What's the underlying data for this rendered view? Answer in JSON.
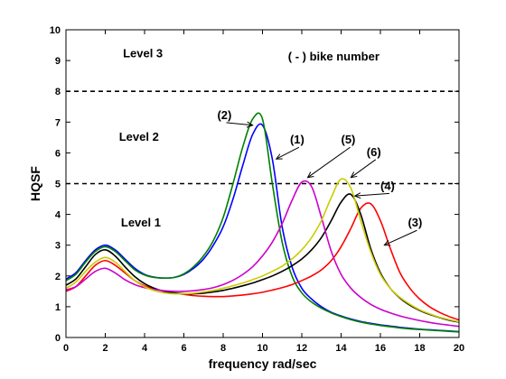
{
  "chart_data": {
    "type": "line",
    "xlabel": "frequency rad/sec",
    "ylabel": "HQSF",
    "xlim": [
      0,
      20
    ],
    "ylim": [
      0,
      10
    ],
    "xticks": [
      0,
      2,
      4,
      6,
      8,
      10,
      12,
      14,
      16,
      18,
      20
    ],
    "yticks": [
      0,
      1,
      2,
      3,
      4,
      5,
      6,
      7,
      8,
      9,
      10
    ],
    "grid": false,
    "reference_lines": [
      {
        "y": 8,
        "style": "dashed",
        "color": "#000000"
      },
      {
        "y": 5,
        "style": "dashed",
        "color": "#000000"
      }
    ],
    "annotations": [
      {
        "text": "Level 3",
        "x": 2.9,
        "y": 9.1
      },
      {
        "text": "Level 2",
        "x": 2.7,
        "y": 6.4
      },
      {
        "text": "Level 1",
        "x": 2.8,
        "y": 3.6
      },
      {
        "text": "( - ) bike number",
        "x": 11.3,
        "y": 9.0
      }
    ],
    "series_labels": [
      {
        "text": "(2)",
        "x": 7.7,
        "y": 7.1,
        "arrow_to": [
          9.5,
          6.9
        ]
      },
      {
        "text": "(1)",
        "x": 11.4,
        "y": 6.3,
        "arrow_to": [
          10.7,
          5.8
        ]
      },
      {
        "text": "(5)",
        "x": 14.0,
        "y": 6.3,
        "arrow_to": [
          12.3,
          5.2
        ]
      },
      {
        "text": "(6)",
        "x": 15.3,
        "y": 5.9,
        "arrow_to": [
          14.5,
          5.2
        ]
      },
      {
        "text": "(4)",
        "x": 16.0,
        "y": 4.8,
        "arrow_to": [
          14.7,
          4.6
        ]
      },
      {
        "text": "(3)",
        "x": 17.4,
        "y": 3.6,
        "arrow_to": [
          16.2,
          3.0
        ]
      }
    ],
    "x": [
      0,
      0.5,
      1,
      1.5,
      2,
      2.5,
      3,
      3.5,
      4,
      4.5,
      5,
      5.5,
      6,
      6.5,
      7,
      7.5,
      8,
      8.5,
      9,
      9.5,
      10,
      10.5,
      11,
      11.5,
      12,
      12.5,
      13,
      13.5,
      14,
      14.5,
      15,
      15.5,
      16,
      16.5,
      17,
      17.5,
      18,
      18.5,
      19,
      19.5,
      20
    ],
    "series": [
      {
        "color": "#0000ff",
        "values": [
          1.9,
          2.1,
          2.5,
          2.85,
          3.0,
          2.85,
          2.55,
          2.25,
          2.05,
          1.96,
          1.93,
          1.95,
          2.05,
          2.25,
          2.55,
          3.0,
          3.6,
          4.5,
          5.6,
          6.6,
          6.9,
          5.8,
          3.6,
          2.3,
          1.6,
          1.25,
          1.0,
          0.82,
          0.7,
          0.6,
          0.52,
          0.46,
          0.41,
          0.37,
          0.33,
          0.3,
          0.27,
          0.25,
          0.23,
          0.21,
          0.19
        ]
      },
      {
        "color": "#008000",
        "values": [
          1.85,
          2.05,
          2.45,
          2.8,
          2.95,
          2.8,
          2.5,
          2.2,
          2.03,
          1.95,
          1.93,
          1.95,
          2.07,
          2.3,
          2.65,
          3.15,
          3.9,
          5.0,
          6.2,
          7.1,
          7.1,
          5.0,
          3.1,
          2.0,
          1.45,
          1.15,
          0.95,
          0.8,
          0.68,
          0.58,
          0.5,
          0.44,
          0.39,
          0.35,
          0.31,
          0.28,
          0.26,
          0.24,
          0.22,
          0.2,
          0.18
        ]
      },
      {
        "color": "#ff0000",
        "values": [
          1.5,
          1.65,
          2.0,
          2.35,
          2.5,
          2.35,
          2.1,
          1.85,
          1.68,
          1.58,
          1.5,
          1.44,
          1.4,
          1.36,
          1.34,
          1.33,
          1.33,
          1.35,
          1.38,
          1.42,
          1.47,
          1.54,
          1.62,
          1.72,
          1.85,
          2.0,
          2.2,
          2.5,
          2.95,
          3.55,
          4.2,
          4.35,
          3.8,
          2.9,
          2.1,
          1.6,
          1.25,
          1.0,
          0.82,
          0.68,
          0.57
        ]
      },
      {
        "color": "#000000",
        "values": [
          1.7,
          1.9,
          2.3,
          2.7,
          2.85,
          2.65,
          2.3,
          1.98,
          1.75,
          1.6,
          1.5,
          1.45,
          1.42,
          1.42,
          1.44,
          1.48,
          1.53,
          1.6,
          1.68,
          1.77,
          1.88,
          2.0,
          2.15,
          2.33,
          2.55,
          2.85,
          3.25,
          3.8,
          4.4,
          4.65,
          4.0,
          2.9,
          2.1,
          1.6,
          1.28,
          1.05,
          0.88,
          0.75,
          0.65,
          0.56,
          0.5
        ]
      },
      {
        "color": "#cc00cc",
        "values": [
          1.55,
          1.65,
          1.9,
          2.15,
          2.25,
          2.1,
          1.88,
          1.72,
          1.62,
          1.56,
          1.52,
          1.5,
          1.5,
          1.52,
          1.56,
          1.62,
          1.72,
          1.86,
          2.05,
          2.3,
          2.65,
          3.1,
          3.7,
          4.45,
          5.05,
          4.9,
          3.9,
          2.8,
          2.05,
          1.6,
          1.3,
          1.08,
          0.92,
          0.8,
          0.7,
          0.62,
          0.55,
          0.49,
          0.44,
          0.4,
          0.36
        ]
      },
      {
        "color": "#cccc00",
        "values": [
          1.6,
          1.8,
          2.15,
          2.45,
          2.6,
          2.45,
          2.15,
          1.85,
          1.65,
          1.52,
          1.45,
          1.42,
          1.42,
          1.44,
          1.48,
          1.53,
          1.6,
          1.68,
          1.77,
          1.88,
          2.0,
          2.15,
          2.32,
          2.55,
          2.85,
          3.25,
          3.8,
          4.55,
          5.15,
          4.85,
          3.8,
          2.8,
          2.05,
          1.6,
          1.3,
          1.08,
          0.9,
          0.77,
          0.66,
          0.58,
          0.51
        ]
      }
    ]
  }
}
